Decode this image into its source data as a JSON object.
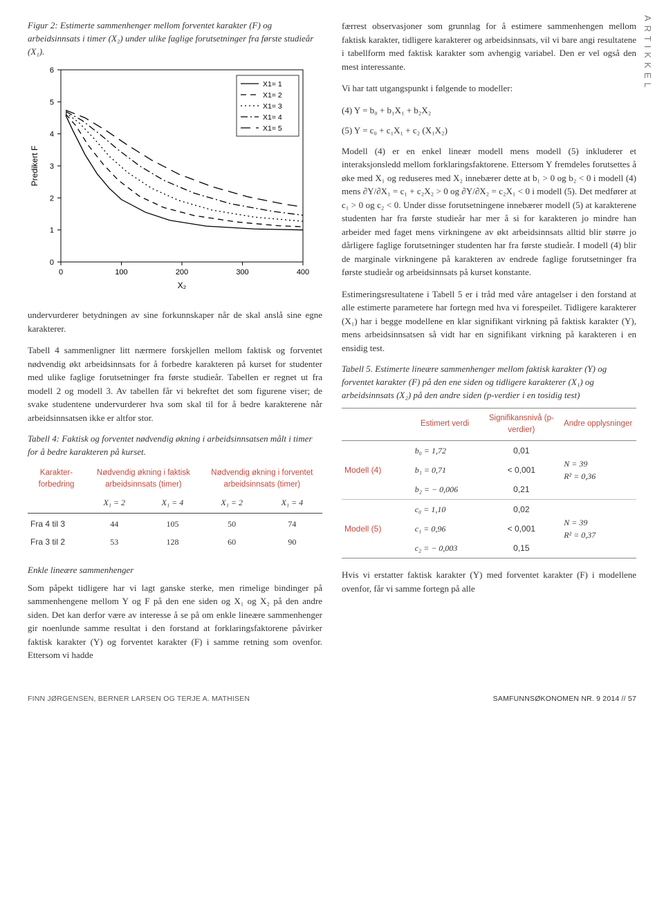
{
  "sidebar_label": "ARTIKKEL",
  "figure2": {
    "caption": "Figur 2: Estimerte sammenhenger mellom forventet karakter (F) og arbeidsinnsats i timer (X₂) under ulike faglige forutsetninger fra første studieår (X₁).",
    "type": "line",
    "xlabel": "X₂",
    "ylabel": "Predikert F",
    "xlim": [
      0,
      400
    ],
    "xtick_step": 100,
    "ylim": [
      0,
      6
    ],
    "yticks": [
      0,
      1,
      2,
      3,
      4,
      5,
      6
    ],
    "background_color": "#ffffff",
    "border_color": "#000000",
    "legend_position": "top-right-inset",
    "legend_items": [
      "X1= 1",
      "X1= 2",
      "X1= 3",
      "X1= 4",
      "X1= 5"
    ],
    "line_color": "#000000",
    "line_styles": [
      "solid",
      "dashed (8 6)",
      "dotted (2 4)",
      "dash-dot (10 4 2 4)",
      "long-dash (14 8)"
    ],
    "series": [
      {
        "label": "X1= 1",
        "dash": "0",
        "y_at_x": [
          [
            8,
            4.58
          ],
          [
            20,
            4.1
          ],
          [
            40,
            3.35
          ],
          [
            60,
            2.75
          ],
          [
            80,
            2.3
          ],
          [
            100,
            1.95
          ],
          [
            140,
            1.55
          ],
          [
            180,
            1.3
          ],
          [
            240,
            1.12
          ],
          [
            320,
            1.03
          ],
          [
            400,
            1.0
          ]
        ]
      },
      {
        "label": "X1= 2",
        "dash": "8 6",
        "y_at_x": [
          [
            8,
            4.62
          ],
          [
            25,
            4.25
          ],
          [
            45,
            3.65
          ],
          [
            70,
            3.05
          ],
          [
            95,
            2.55
          ],
          [
            130,
            2.05
          ],
          [
            170,
            1.7
          ],
          [
            220,
            1.45
          ],
          [
            290,
            1.25
          ],
          [
            360,
            1.13
          ],
          [
            400,
            1.1
          ]
        ]
      },
      {
        "label": "X1= 3",
        "dash": "2 4",
        "y_at_x": [
          [
            8,
            4.66
          ],
          [
            30,
            4.35
          ],
          [
            55,
            3.85
          ],
          [
            80,
            3.3
          ],
          [
            110,
            2.8
          ],
          [
            150,
            2.3
          ],
          [
            195,
            1.92
          ],
          [
            250,
            1.62
          ],
          [
            320,
            1.4
          ],
          [
            400,
            1.27
          ]
        ]
      },
      {
        "label": "X1= 4",
        "dash": "10 4 2 4",
        "y_at_x": [
          [
            8,
            4.7
          ],
          [
            35,
            4.42
          ],
          [
            65,
            3.98
          ],
          [
            95,
            3.5
          ],
          [
            130,
            3.0
          ],
          [
            170,
            2.55
          ],
          [
            220,
            2.15
          ],
          [
            280,
            1.82
          ],
          [
            350,
            1.58
          ],
          [
            400,
            1.46
          ]
        ]
      },
      {
        "label": "X1= 5",
        "dash": "14 8",
        "y_at_x": [
          [
            8,
            4.74
          ],
          [
            40,
            4.5
          ],
          [
            75,
            4.1
          ],
          [
            110,
            3.65
          ],
          [
            150,
            3.18
          ],
          [
            195,
            2.74
          ],
          [
            250,
            2.35
          ],
          [
            310,
            2.03
          ],
          [
            370,
            1.8
          ],
          [
            400,
            1.72
          ]
        ]
      }
    ]
  },
  "left_text": {
    "p1": "undervurderer betydningen av sine forkunnskaper når de skal anslå sine egne karakterer.",
    "p2": "Tabell 4 sammenligner litt nærmere forskjellen mellom faktisk og forventet nødvendig økt arbeidsinnsats for å forbedre karakteren på kurset for studenter med ulike faglige forutsetninger fra første studieår. Tabellen er regnet ut fra modell 2 og modell 3. Av tabellen får vi bekreftet det som figurene viser; de svake studentene undervurderer hva som skal til for å bedre karakterene når arbeidsinnsatsen ikke er altfor stor.",
    "t4cap": "Tabell 4: Faktisk og forventet nødvendig økning i arbeidsinnsatsen målt i timer for å bedre karakteren på kurset.",
    "subhead": "Enkle lineære sammenhenger",
    "p3": "Som påpekt tidligere har vi lagt ganske sterke, men rimelige bindinger på sammenhengene mellom Y og F på den ene siden og X₁ og X₂ på den andre siden. Det kan derfor være av interesse å se på om enkle lineære sammenhenger gir noenlunde samme resultat i den forstand at forklaringsfaktorene påvirker faktisk karakter (Y) og forventet karakter (F) i samme retning som ovenfor. Ettersom vi hadde"
  },
  "table4": {
    "col_headers": [
      "Karakter-forbedring",
      "Nødvendig økning i faktisk arbeidsinnsats (timer)",
      "Nødvendig økning i forventet arbeidsinnsats (timer)"
    ],
    "sub_headers": [
      "X₁ = 2",
      "X₁ = 4",
      "X₁ = 2",
      "X₁ = 4"
    ],
    "rows": [
      {
        "label": "Fra 4 til 3",
        "cells": [
          "44",
          "105",
          "50",
          "74"
        ]
      },
      {
        "label": "Fra 3 til 2",
        "cells": [
          "53",
          "128",
          "60",
          "90"
        ]
      }
    ],
    "header_color": "#c9473a"
  },
  "right_text": {
    "p1": "færrest observasjoner som grunnlag for å estimere sammenhengen mellom faktisk karakter, tidligere karakterer og arbeidsinnsats, vil vi bare angi resultatene i tabellform med faktisk karakter som avhengig variabel. Den er vel også den mest interessante.",
    "p2": "Vi har tatt utgangspunkt i følgende to modeller:",
    "eq4": "(4) Y = b₀ + b₁X₁ + b₂X₂",
    "eq5": "(5) Y = c₀ + c₁X₁ + c₂ (X₁X₂)",
    "p3": "Modell (4) er en enkel lineær modell mens modell (5) inkluderer et interaksjonsledd mellom forklaringsfaktorene. Ettersom Y fremdeles forutsettes å øke med X₁ og reduseres med X₂ innebærer dette at b₁ > 0 og b₂ < 0 i modell (4) mens ∂Y/∂X₁ = c₁ + c₂X₂ > 0 og ∂Y/∂X₂ = c₂X₁ < 0 i modell (5). Det medfører at c₁ > 0 og c₂ < 0. Under disse forutsetningene innebærer modell (5) at karakterene studenten har fra første studieår har mer å si for karakteren jo mindre han arbeider med faget mens virkningene av økt arbeidsinnsats alltid blir større jo dårligere faglige forutsetninger studenten har fra første studieår. I modell (4) blir de marginale virkningene på karakteren av endrede faglige forutsetninger fra første studieår og arbeidsinnsats på kurset konstante.",
    "p4": "Estimeringsresultatene i Tabell 5 er i tråd med våre antagelser i den forstand at alle estimerte parametere har fortegn med hva vi forespeilet. Tidligere karakterer (X₁) har i begge modellene en klar signifikant virkning på faktisk karakter (Y), mens arbeidsinnsatsen så vidt har en signifikant virkning på karakteren i en ensidig test.",
    "t5cap": "Tabell 5. Estimerte lineære sammenhenger mellom faktisk karakter (Y) og forventet karakter (F) på den ene siden og tidligere karakterer (X₁) og arbeidsinnsats (X₂) på den andre siden (p-verdier i en tosidig test)",
    "p5": "Hvis vi erstatter faktisk karakter (Y) med forventet karakter (F) i modellene ovenfor, får vi samme fortegn på alle"
  },
  "table5": {
    "header_color": "#c9473a",
    "col_headers": [
      "",
      "Estimert verdi",
      "Signifikansnivå (p-verdier)",
      "Andre opplysninger"
    ],
    "blocks": [
      {
        "model": "Modell (4)",
        "rows": [
          {
            "coef": "b₀ = 1,72",
            "p": "0,01"
          },
          {
            "coef": "b₁ = 0,71",
            "p": "< 0,001"
          },
          {
            "coef": "b₂ = − 0,006",
            "p": "0,21"
          }
        ],
        "extras": [
          "N = 39",
          "R² = 0,36"
        ]
      },
      {
        "model": "Modell (5)",
        "rows": [
          {
            "coef": "c₀ = 1,10",
            "p": "0,02"
          },
          {
            "coef": "c₁ = 0,96",
            "p": "< 0,001"
          },
          {
            "coef": "c₂ = − 0,003",
            "p": "0,15"
          }
        ],
        "extras": [
          "N = 39",
          "R² = 0,37"
        ]
      }
    ]
  },
  "footer": {
    "left": "FINN JØRGENSEN, BERNER LARSEN OG TERJE A. MATHISEN",
    "right": "SAMFUNNSØKONOMEN NR. 9 2014  //  57"
  }
}
